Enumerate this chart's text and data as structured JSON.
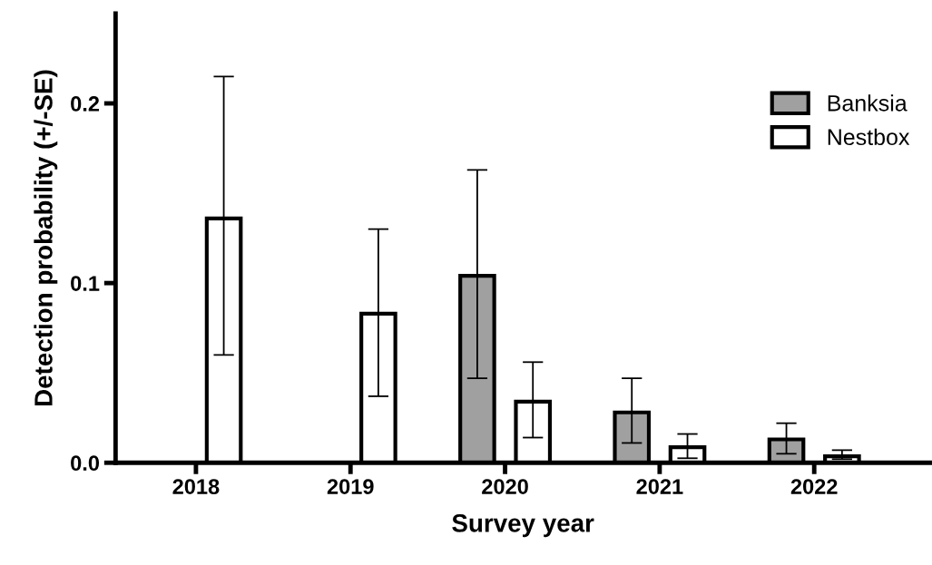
{
  "chart_data": {
    "type": "bar",
    "xlabel": "Survey year",
    "ylabel": "Detection probability (+/-SE)",
    "categories": [
      "2018",
      "2019",
      "2020",
      "2021",
      "2022"
    ],
    "series": [
      {
        "name": "Banksia",
        "color": "#a0a0a0",
        "values": [
          null,
          null,
          0.104,
          0.028,
          0.013
        ],
        "errors": [
          null,
          null,
          [
            0.047,
            0.163
          ],
          [
            0.011,
            0.047
          ],
          [
            0.005,
            0.022
          ]
        ]
      },
      {
        "name": "Nestbox",
        "color": "#ffffff",
        "values": [
          0.136,
          0.083,
          0.034,
          0.0086,
          0.0036
        ],
        "errors": [
          [
            0.06,
            0.215
          ],
          [
            0.037,
            0.13
          ],
          [
            0.014,
            0.056
          ],
          [
            0.0025,
            0.016
          ],
          [
            0.002,
            0.007
          ]
        ]
      }
    ],
    "ylim": [
      0,
      0.25
    ],
    "yticks": [
      {
        "value": 0,
        "label": "0.0"
      },
      0.1,
      0.2
    ],
    "grid": false,
    "legend": "right"
  }
}
